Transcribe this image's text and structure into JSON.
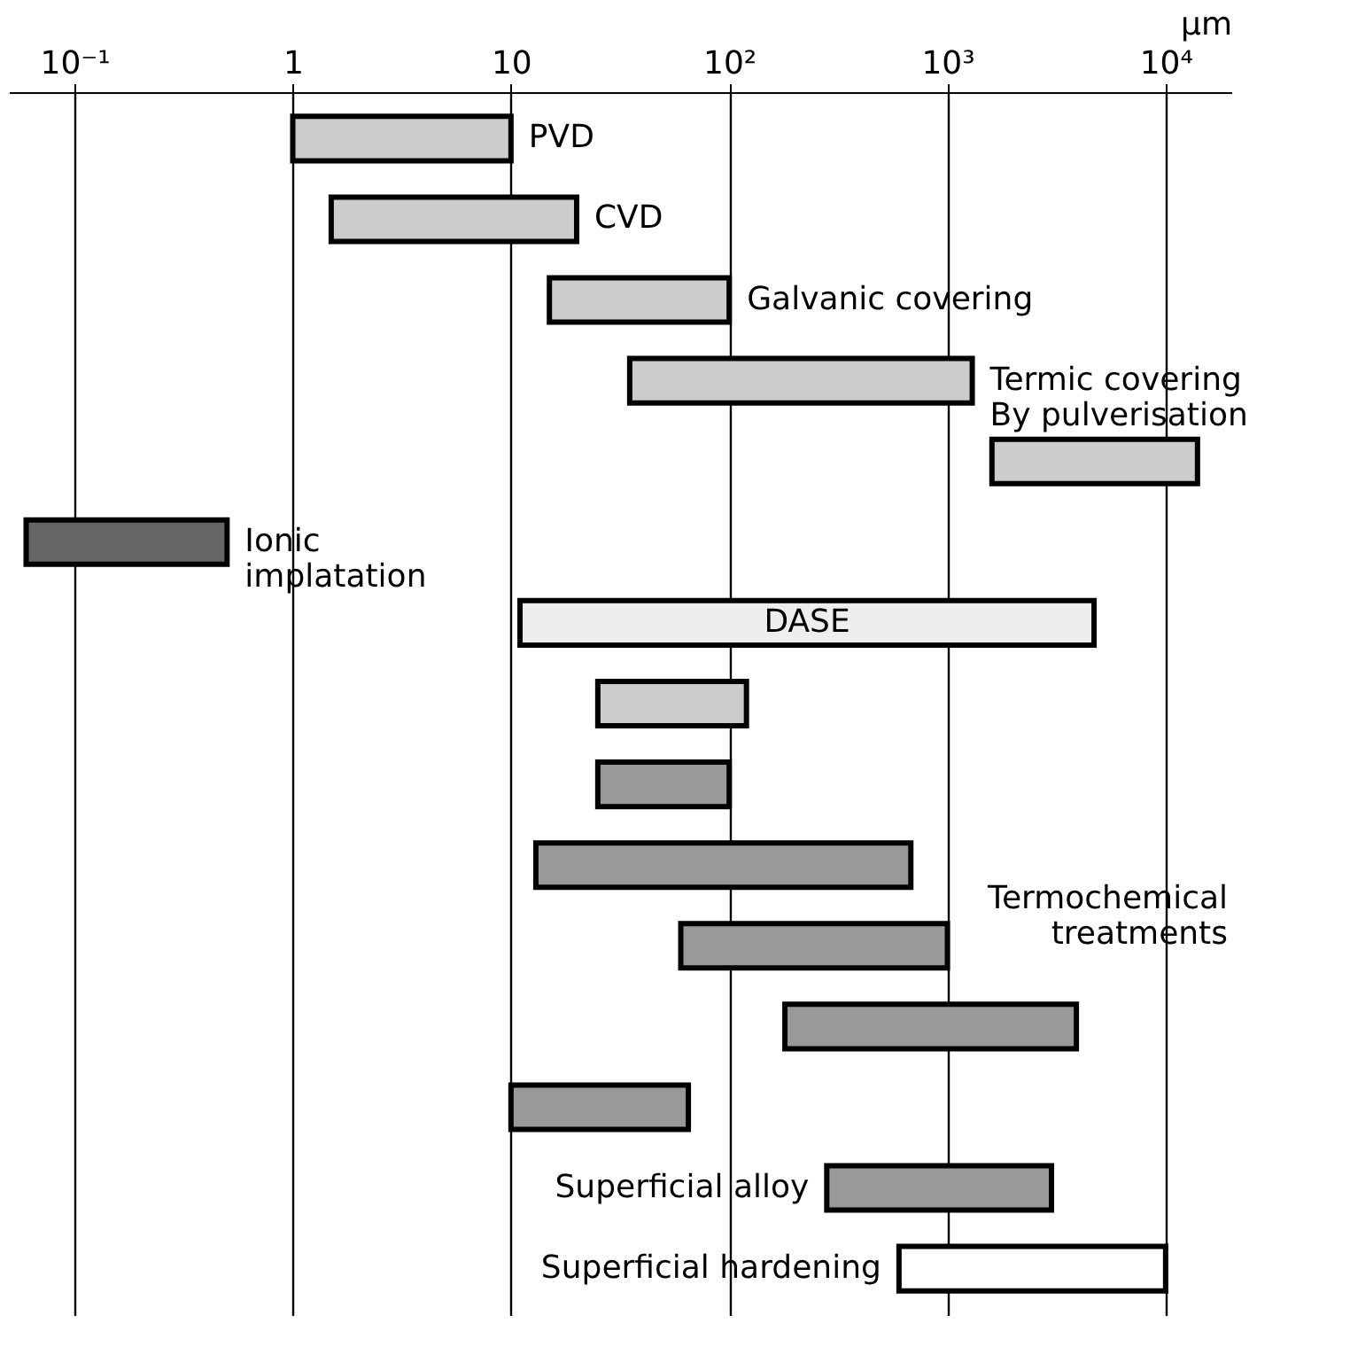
{
  "chart_data": {
    "type": "bar",
    "orientation": "horizontal",
    "log": "x",
    "grid": "x",
    "tick_labels": "x",
    "xlabel": "μm",
    "categories": [
      "PVD",
      "CVD",
      "Galvanic covering",
      "Termic covering\nBy pulverisation",
      null,
      "Ionic\nimplatation",
      "DASE",
      null,
      null,
      null,
      null,
      null,
      null,
      "Superficial alloy",
      "Superficial hardening"
    ],
    "base": [
      1,
      1.5,
      15,
      35,
      1600,
      0.06,
      11,
      25,
      25,
      13,
      60,
      180,
      10,
      280,
      600
    ],
    "values": [
      9,
      18.5,
      85,
      1265,
      12400,
      0.44,
      4689,
      95,
      75,
      667,
      940,
      3720,
      55,
      2720,
      9400
    ],
    "colors": [
      "#cccccc",
      "#cccccc",
      "#cccccc",
      "#cccccc",
      "#cccccc",
      "#666666",
      "#eeeeee",
      "#cccccc",
      "#999999",
      "#999999",
      "#999999",
      "#999999",
      "#999999",
      "#999999",
      "#ffffff"
    ],
    "xlim": [
      0.05,
      20000
    ],
    "xticks": [
      {
        "value": 0.1,
        "label": "10⁻¹"
      },
      1,
      10,
      {
        "value": 100,
        "label": "10²"
      },
      {
        "value": 1000,
        "label": "10³"
      },
      {
        "value": 10000,
        "label": "10⁴"
      }
    ],
    "annotations": [
      "Termochemical\ntreatments"
    ]
  }
}
